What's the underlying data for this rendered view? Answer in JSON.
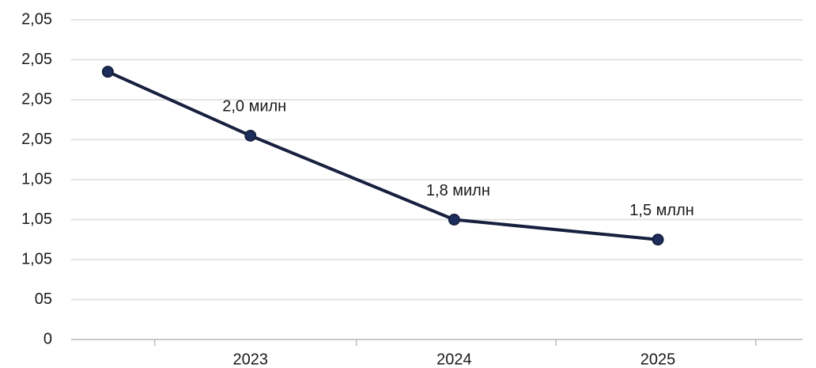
{
  "chart_data": {
    "type": "line",
    "x": [
      2022.3,
      2023,
      2024,
      2025
    ],
    "series": [
      {
        "color": "#17203f",
        "values": [
          6.7,
          5.1,
          3.0,
          2.5
        ]
      }
    ],
    "xlim": [
      2022.12,
      2025.71
    ],
    "xticks": [
      2023,
      2024,
      2025
    ],
    "xminorticks": [
      2022.53,
      2023.52,
      2024.5,
      2025.48
    ],
    "ylim": [
      0,
      8
    ],
    "yticks": [
      0,
      {
        "value": 1,
        "label": "05"
      },
      {
        "value": 2,
        "label": "1,05"
      },
      {
        "value": 3,
        "label": "1,05"
      },
      {
        "value": 4,
        "label": "1,05"
      },
      {
        "value": 5,
        "label": "2,05"
      },
      {
        "value": 6,
        "label": "2,05"
      },
      {
        "value": 7,
        "label": "2,05"
      },
      {
        "value": 8,
        "label": "2,05"
      }
    ],
    "grid": true,
    "annotations": [
      {
        "text": "2,0 милн",
        "x": 2023
      },
      {
        "text": "1,8 милн",
        "x": 2024
      },
      {
        "text": "1,5 мллн",
        "x": 2025
      }
    ]
  }
}
